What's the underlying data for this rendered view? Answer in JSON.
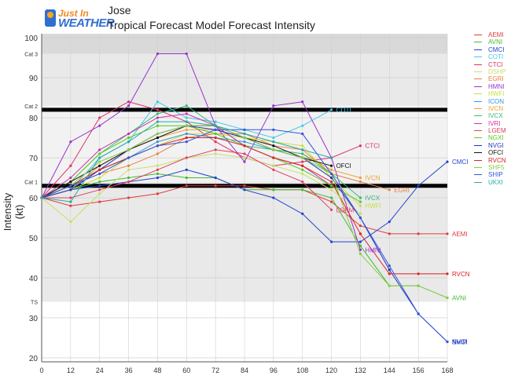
{
  "header": {
    "title": "Jose",
    "subtitle": "Tropical Forecast Model Forecast Intensity"
  },
  "logo": {
    "top": "Just In",
    "bottom": "WEATHER"
  },
  "chart_data": {
    "type": "line",
    "title": "Jose",
    "subtitle": "Tropical Forecast Model Forecast Intensity",
    "xlabel": "",
    "ylabel": "Intensity (kt)",
    "xlim": [
      0,
      168
    ],
    "ylim": [
      19,
      101
    ],
    "xticks": [
      0,
      12,
      24,
      36,
      48,
      60,
      72,
      84,
      96,
      108,
      120,
      132,
      144,
      156,
      168
    ],
    "yticks": [
      20,
      30,
      40,
      50,
      60,
      70,
      80,
      90,
      100
    ],
    "category_lines": [
      {
        "label": "Cat 3",
        "y": 96
      },
      {
        "label": "Cat 2",
        "y": 83
      },
      {
        "label": "Cat 1",
        "y": 64
      },
      {
        "label": "TS",
        "y": 34
      }
    ],
    "thick_lines": [
      82,
      63
    ],
    "series": [
      {
        "name": "AEMI",
        "color": "#e23b3b",
        "x": [
          0,
          12,
          24,
          36,
          48,
          60,
          72,
          84,
          96,
          108,
          120,
          132,
          144,
          156,
          168
        ],
        "y": [
          60,
          58,
          59,
          60,
          61,
          63,
          63,
          63,
          62,
          62,
          59,
          53,
          51,
          51,
          51
        ]
      },
      {
        "name": "AVNI",
        "color": "#44bb33",
        "x": [
          0,
          12,
          24,
          36,
          48,
          60,
          72,
          84,
          96,
          108,
          120,
          132,
          144,
          156,
          168
        ],
        "y": [
          60,
          62,
          64,
          65,
          66,
          65,
          65,
          62,
          62,
          62,
          60,
          48,
          38,
          38,
          35
        ]
      },
      {
        "name": "CMCI",
        "color": "#2244cc",
        "x": [
          0,
          12,
          24,
          36,
          48,
          60,
          72,
          84,
          96,
          108,
          120,
          132,
          144,
          156,
          168
        ],
        "y": [
          60,
          62,
          63,
          64,
          65,
          67,
          65,
          62,
          60,
          56,
          49,
          49,
          54,
          63,
          69
        ]
      },
      {
        "name": "COTI",
        "color": "#44c8e8",
        "x": [
          0,
          12,
          24,
          36,
          48,
          60,
          72,
          84,
          96,
          108,
          120
        ],
        "y": [
          60,
          62,
          70,
          74,
          84,
          80,
          79,
          77,
          75,
          78,
          82
        ]
      },
      {
        "name": "CTCI",
        "color": "#e0306a",
        "x": [
          0,
          12,
          24,
          36,
          48,
          60,
          72,
          84,
          96,
          108,
          120,
          132
        ],
        "y": [
          60,
          68,
          80,
          84,
          82,
          79,
          74,
          70,
          68,
          69,
          70,
          73
        ]
      },
      {
        "name": "DSHP",
        "color": "#c8e060",
        "x": [
          0,
          12,
          24,
          36,
          48,
          60,
          72,
          84,
          96,
          108,
          120,
          132
        ],
        "y": [
          60,
          54,
          61,
          67,
          68,
          70,
          71,
          70,
          68,
          66,
          62,
          56
        ]
      },
      {
        "name": "EGRI",
        "color": "#e88040",
        "x": [
          0,
          12,
          24,
          36,
          48,
          60,
          72,
          84,
          96,
          108,
          120,
          132,
          144
        ],
        "y": [
          60,
          63,
          66,
          68,
          71,
          75,
          76,
          76,
          73,
          72,
          66,
          64,
          62
        ]
      },
      {
        "name": "HMNI",
        "color": "#9933cc",
        "x": [
          0,
          12,
          24,
          36,
          48,
          60,
          72,
          84,
          96,
          108,
          120,
          132
        ],
        "y": [
          60,
          74,
          78,
          83,
          96,
          96,
          78,
          69,
          83,
          84,
          70,
          47
        ]
      },
      {
        "name": "HWFI",
        "color": "#c8e040",
        "x": [
          0,
          12,
          24,
          36,
          48,
          60,
          72,
          84,
          96,
          108,
          120,
          132
        ],
        "y": [
          60,
          62,
          65,
          70,
          73,
          76,
          76,
          75,
          74,
          73,
          65,
          58
        ]
      },
      {
        "name": "ICON",
        "color": "#3399dd",
        "x": [
          0,
          12,
          24,
          36,
          48,
          60,
          72,
          84,
          96,
          108,
          120
        ],
        "y": [
          60,
          62,
          67,
          70,
          74,
          76,
          75,
          74,
          72,
          70,
          66
        ]
      },
      {
        "name": "IVCN",
        "color": "#f0a030",
        "x": [
          0,
          12,
          24,
          36,
          48,
          60,
          72,
          84,
          96,
          108,
          120,
          132
        ],
        "y": [
          60,
          62,
          68,
          72,
          75,
          77,
          77,
          75,
          72,
          71,
          67,
          65
        ]
      },
      {
        "name": "IVCX",
        "color": "#33bb77",
        "x": [
          0,
          12,
          24,
          36,
          48,
          60,
          72,
          84,
          96,
          108,
          120,
          132
        ],
        "y": [
          60,
          64,
          71,
          76,
          81,
          83,
          78,
          73,
          72,
          71,
          66,
          60
        ]
      },
      {
        "name": "IVRI",
        "color": "#cc33aa",
        "x": [
          0,
          12,
          24,
          36,
          48,
          60,
          72,
          84,
          96,
          108,
          120
        ],
        "y": [
          60,
          65,
          72,
          76,
          80,
          81,
          78,
          73,
          70,
          68,
          63
        ]
      },
      {
        "name": "LGEM",
        "color": "#e04060",
        "x": [
          0,
          12,
          24,
          36,
          48,
          60,
          72,
          84,
          96,
          108,
          120
        ],
        "y": [
          60,
          60,
          62,
          64,
          67,
          70,
          72,
          71,
          67,
          64,
          57
        ]
      },
      {
        "name": "NGXI",
        "color": "#55cc22",
        "x": [
          0,
          12,
          24,
          36,
          48,
          60,
          72,
          84,
          96,
          108,
          120,
          132
        ],
        "y": [
          60,
          64,
          71,
          75,
          78,
          78,
          76,
          73,
          70,
          67,
          63,
          59
        ]
      },
      {
        "name": "NVGI",
        "color": "#2233bb",
        "x": [
          0,
          12,
          24,
          36,
          48,
          60,
          72,
          84,
          96,
          108,
          120,
          132,
          144,
          156,
          168
        ],
        "y": [
          60,
          62,
          67,
          72,
          76,
          78,
          77,
          75,
          72,
          70,
          65,
          55,
          42,
          31,
          24
        ]
      },
      {
        "name": "OFCI",
        "color": "#111111",
        "x": [
          0,
          12,
          24,
          36,
          48,
          60,
          72,
          84,
          96,
          108,
          120
        ],
        "y": [
          60,
          64,
          68,
          72,
          75,
          78,
          78,
          75,
          73,
          70,
          68
        ]
      },
      {
        "name": "RVCN",
        "color": "#dd2222",
        "x": [
          0,
          12,
          24,
          36,
          48,
          60,
          72,
          84,
          96,
          108,
          120,
          132,
          144,
          156,
          168
        ],
        "y": [
          60,
          63,
          67,
          70,
          73,
          75,
          75,
          73,
          70,
          68,
          64,
          51,
          41,
          41,
          41
        ]
      },
      {
        "name": "SHF5",
        "color": "#88cc44",
        "x": [
          0,
          12,
          24,
          36,
          48,
          60,
          72,
          84,
          96,
          108,
          120,
          132,
          144,
          156,
          168
        ],
        "y": [
          60,
          63,
          69,
          72,
          76,
          78,
          78,
          75,
          72,
          70,
          66,
          46,
          38,
          38,
          35
        ]
      },
      {
        "name": "SHIP",
        "color": "#3355dd",
        "x": [
          0,
          12,
          24,
          36,
          48,
          60,
          72,
          84,
          96,
          108,
          120,
          132,
          144,
          156,
          168
        ],
        "y": [
          60,
          63,
          66,
          70,
          73,
          74,
          77,
          77,
          77,
          76,
          66,
          55,
          43,
          31,
          24
        ]
      },
      {
        "name": "UKXI",
        "color": "#22aaaa",
        "x": [
          0,
          12,
          24,
          36,
          48,
          60,
          72,
          84,
          96,
          108,
          120
        ],
        "y": [
          60,
          59,
          70,
          74,
          79,
          79,
          78,
          76,
          74,
          72,
          70
        ]
      }
    ],
    "end_labels": [
      {
        "text": "OFCI",
        "series": "OFCI"
      },
      {
        "text": "SHIP",
        "series": "SHIP"
      },
      {
        "text": "NVGI",
        "series": "NVGI"
      },
      {
        "text": "COTI",
        "series": "COTI"
      },
      {
        "text": "CTCI",
        "series": "CTCI"
      },
      {
        "text": "IVCN",
        "series": "IVCN"
      },
      {
        "text": "EGRI",
        "series": "EGRI"
      },
      {
        "text": "LGEM",
        "series": "LGEM"
      },
      {
        "text": "IVCX",
        "series": "IVCX"
      },
      {
        "text": "HWFI",
        "series": "HWFI"
      },
      {
        "text": "HMNI",
        "series": "HMNI"
      },
      {
        "text": "CMCI",
        "series": "CMCI"
      },
      {
        "text": "AEMI",
        "series": "AEMI"
      },
      {
        "text": "RVCN",
        "series": "RVCN"
      },
      {
        "text": "AVNI",
        "series": "AVNI"
      },
      {
        "text": "NVGI",
        "series": "NVGI"
      }
    ]
  }
}
